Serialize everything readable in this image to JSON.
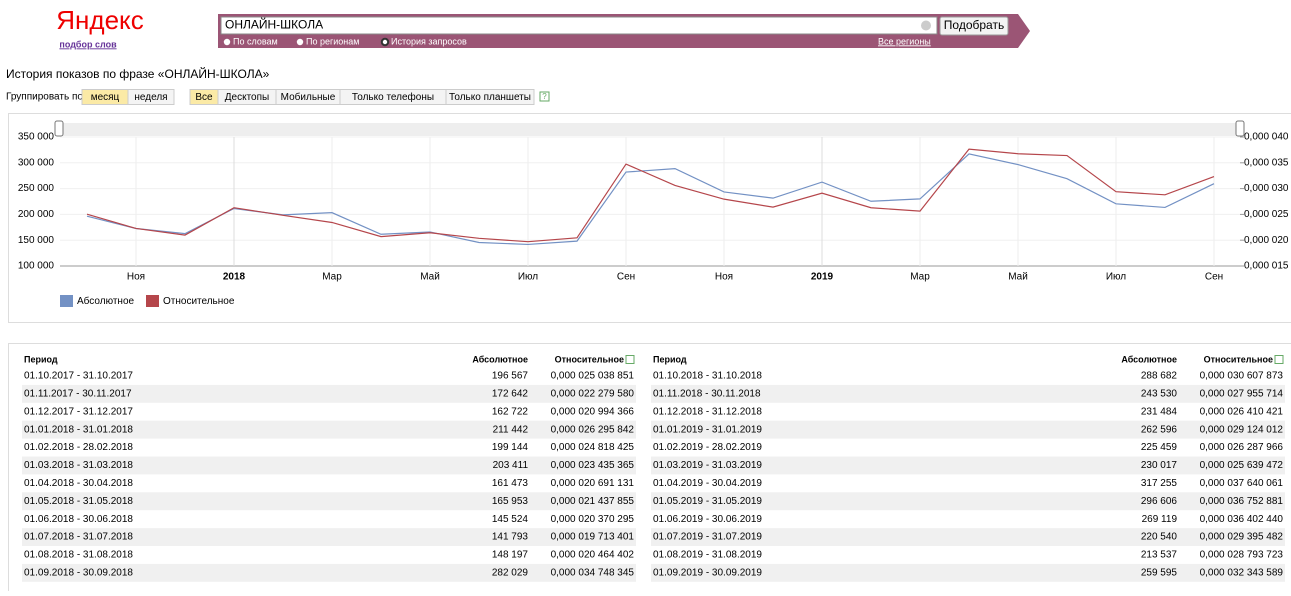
{
  "header": {
    "logo": "Яндекс",
    "logo_sub": "подбор слов",
    "query": "ОНЛАЙН-ШКОЛА",
    "button": "Подобрать",
    "modes": [
      "По словам",
      "По регионам",
      "История запросов"
    ],
    "regions": "Все регионы"
  },
  "heading": "История показов по фразе «ОНЛАЙН-ШКОЛА»",
  "controls": {
    "group_label": "Группировать по:",
    "group": [
      "месяц",
      "неделя"
    ],
    "devices": [
      "Все",
      "Десктопы",
      "Мобильные",
      "Только телефоны",
      "Только планшеты"
    ],
    "help": "?"
  },
  "chart_data": {
    "type": "line",
    "categories": [
      null,
      "Ноя",
      null,
      "2018",
      null,
      "Мар",
      null,
      "Май",
      null,
      "Июл",
      null,
      "Сен",
      null,
      "Ноя",
      null,
      "2019",
      null,
      "Мар",
      null,
      "Май",
      null,
      "Июл",
      null,
      "Сен"
    ],
    "ylim": [
      100000,
      350000
    ],
    "yticks": [
      {
        "value": 100000,
        "label": "100 000"
      },
      {
        "value": 150000,
        "label": "150 000"
      },
      {
        "value": 200000,
        "label": "200 000"
      },
      {
        "value": 250000,
        "label": "250 000"
      },
      {
        "value": 300000,
        "label": "300 000"
      },
      {
        "value": 350000,
        "label": "350 000"
      }
    ],
    "y2lim": [
      1.5e-05,
      4e-05
    ],
    "y2ticks": [
      {
        "value": 1.5e-05,
        "label": "0,000 015"
      },
      {
        "value": 2e-05,
        "label": "0,000 020"
      },
      {
        "value": 2.5e-05,
        "label": "0,000 025"
      },
      {
        "value": 3e-05,
        "label": "0,000 030"
      },
      {
        "value": 3.5e-05,
        "label": "0,000 035"
      },
      {
        "value": 4e-05,
        "label": "0,000 040"
      }
    ],
    "series": [
      {
        "name": "Абсолютное",
        "color": "#7391c4",
        "values": [
          196567,
          172642,
          162722,
          211442,
          199144,
          203411,
          161473,
          165953,
          145524,
          141793,
          148197,
          282029,
          288682,
          243530,
          231484,
          262596,
          225459,
          230017,
          317255,
          296606,
          269119,
          220540,
          213537,
          259595
        ],
        "value_labels": [
          "196 567",
          "172 642",
          "162 722",
          "211 442",
          "199 144",
          "203 411",
          "161 473",
          "165 953",
          "145 524",
          "141 793",
          "148 197",
          "282 029",
          "288 682",
          "243 530",
          "231 484",
          "262 596",
          "225 459",
          "230 017",
          "317 255",
          "296 606",
          "269 119",
          "220 540",
          "213 537",
          "259 595"
        ]
      },
      {
        "name": "Относительное",
        "color": "#b5464b",
        "axis": "y2",
        "values": [
          2.5038851e-05,
          2.227958e-05,
          2.0994366e-05,
          2.6295842e-05,
          2.4818425e-05,
          2.3435365e-05,
          2.0691131e-05,
          2.1437855e-05,
          2.0370295e-05,
          1.9713401e-05,
          2.0464402e-05,
          3.4748345e-05,
          3.0607873e-05,
          2.7955714e-05,
          2.6410421e-05,
          2.9124012e-05,
          2.6287966e-05,
          2.5639472e-05,
          3.7640061e-05,
          3.6752881e-05,
          3.640244e-05,
          2.9395482e-05,
          2.8793723e-05,
          3.2343589e-05
        ],
        "value_labels": [
          "0,000 025 038 851",
          "0,000 022 279 580",
          "0,000 020 994 366",
          "0,000 026 295 842",
          "0,000 024 818 425",
          "0,000 023 435 365",
          "0,000 020 691 131",
          "0,000 021 437 855",
          "0,000 020 370 295",
          "0,000 019 713 401",
          "0,000 020 464 402",
          "0,000 034 748 345",
          "0,000 030 607 873",
          "0,000 027 955 714",
          "0,000 026 410 421",
          "0,000 029 124 012",
          "0,000 026 287 966",
          "0,000 025 639 472",
          "0,000 037 640 061",
          "0,000 036 752 881",
          "0,000 036 402 440",
          "0,000 029 395 482",
          "0,000 028 793 723",
          "0,000 032 343 589"
        ]
      }
    ]
  },
  "table": {
    "headers": [
      "Период",
      "Абсолютное",
      "Относительное"
    ],
    "periods": [
      "01.10.2017 - 31.10.2017",
      "01.11.2017 - 30.11.2017",
      "01.12.2017 - 31.12.2017",
      "01.01.2018 - 31.01.2018",
      "01.02.2018 - 28.02.2018",
      "01.03.2018 - 31.03.2018",
      "01.04.2018 - 30.04.2018",
      "01.05.2018 - 31.05.2018",
      "01.06.2018 - 30.06.2018",
      "01.07.2018 - 31.07.2018",
      "01.08.2018 - 31.08.2018",
      "01.09.2018 - 30.09.2018",
      "01.10.2018 - 31.10.2018",
      "01.11.2018 - 30.11.2018",
      "01.12.2018 - 31.12.2018",
      "01.01.2019 - 31.01.2019",
      "01.02.2019 - 28.02.2019",
      "01.03.2019 - 31.03.2019",
      "01.04.2019 - 30.04.2019",
      "01.05.2019 - 31.05.2019",
      "01.06.2019 - 30.06.2019",
      "01.07.2019 - 31.07.2019",
      "01.08.2019 - 31.08.2019",
      "01.09.2019 - 30.09.2019"
    ]
  }
}
